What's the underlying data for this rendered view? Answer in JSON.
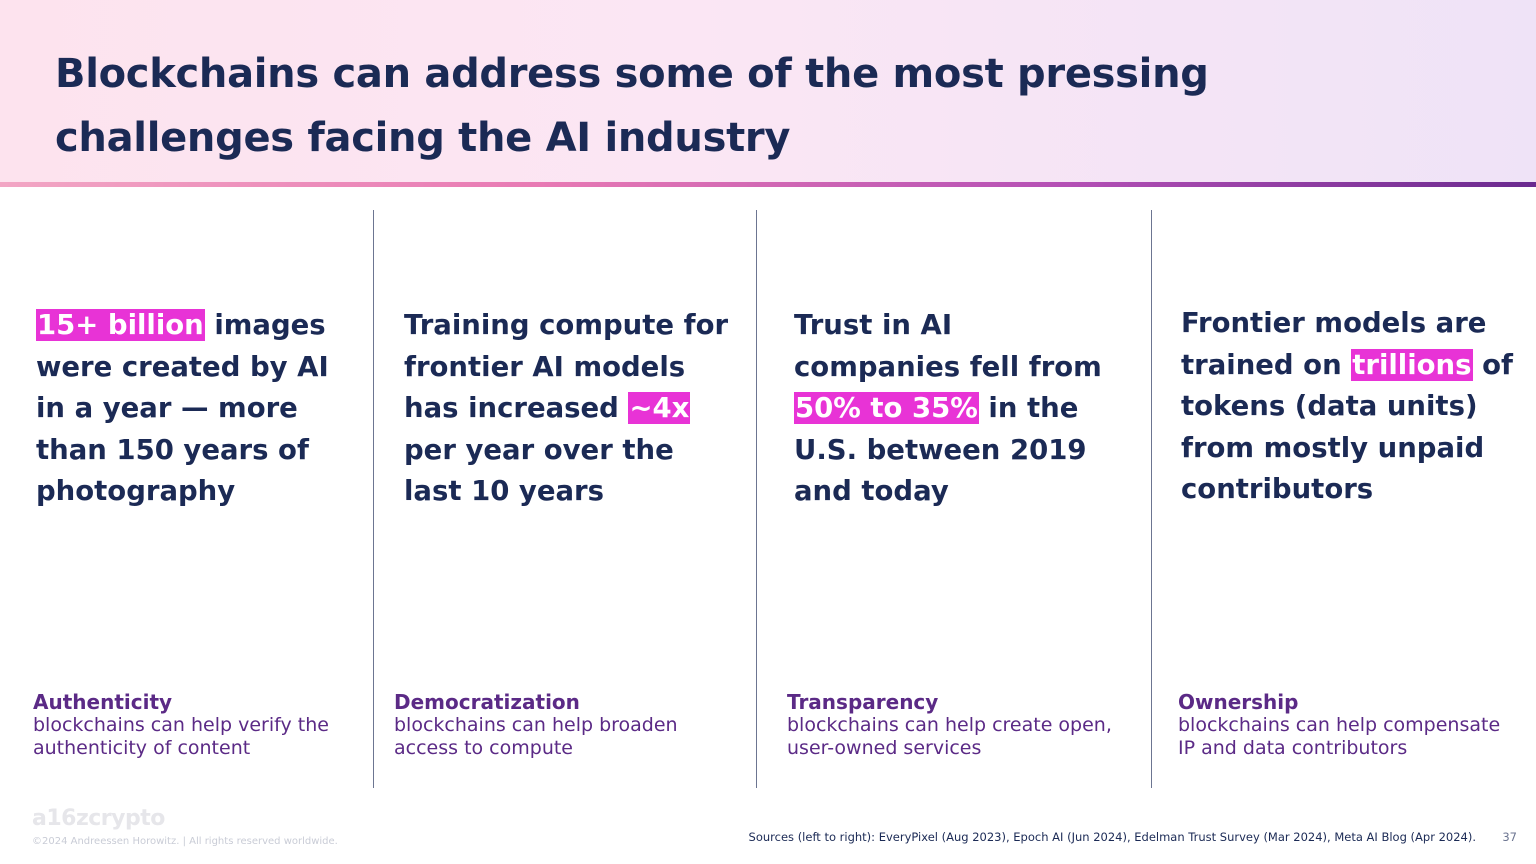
{
  "title": "Blockchains can address some of the most pressing challenges facing the AI industry",
  "columns": [
    {
      "stat_pre": "",
      "stat_highlight": "15+ billion",
      "stat_post": " images were created by AI in a year — more than 150 years of photography",
      "category": "Authenticity",
      "description": "blockchains can help verify the authenticity of content"
    },
    {
      "stat_pre": "Training compute for frontier AI models has increased ",
      "stat_highlight": "~4x",
      "stat_post": " per year over the last 10 years",
      "category": "Democratization",
      "description": "blockchains can help broaden access to compute"
    },
    {
      "stat_pre": "Trust in AI companies fell from ",
      "stat_highlight": "50% to 35%",
      "stat_post": " in the U.S. between 2019 and today",
      "category": "Transparency",
      "description": "blockchains can help create open, user-owned services"
    },
    {
      "stat_pre": "Frontier models are trained on ",
      "stat_highlight": "trillions",
      "stat_post": " of tokens (data units) from mostly unpaid contributors",
      "category": "Ownership",
      "description": "blockchains can help compensate IP and data contributors"
    }
  ],
  "footer": {
    "logo": "a16zcrypto",
    "copyright": "©2024 Andreessen Horowitz. | All rights reserved worldwide.",
    "sources": "Sources (left to right): EveryPixel (Aug 2023), Epoch AI (Jun 2024), Edelman Trust Survey (Mar 2024), Meta AI Blog (Apr 2024).",
    "page_number": "37"
  },
  "colors": {
    "heading": "#1b2a55",
    "highlight": "#e833d6",
    "category": "#5b2a86"
  }
}
